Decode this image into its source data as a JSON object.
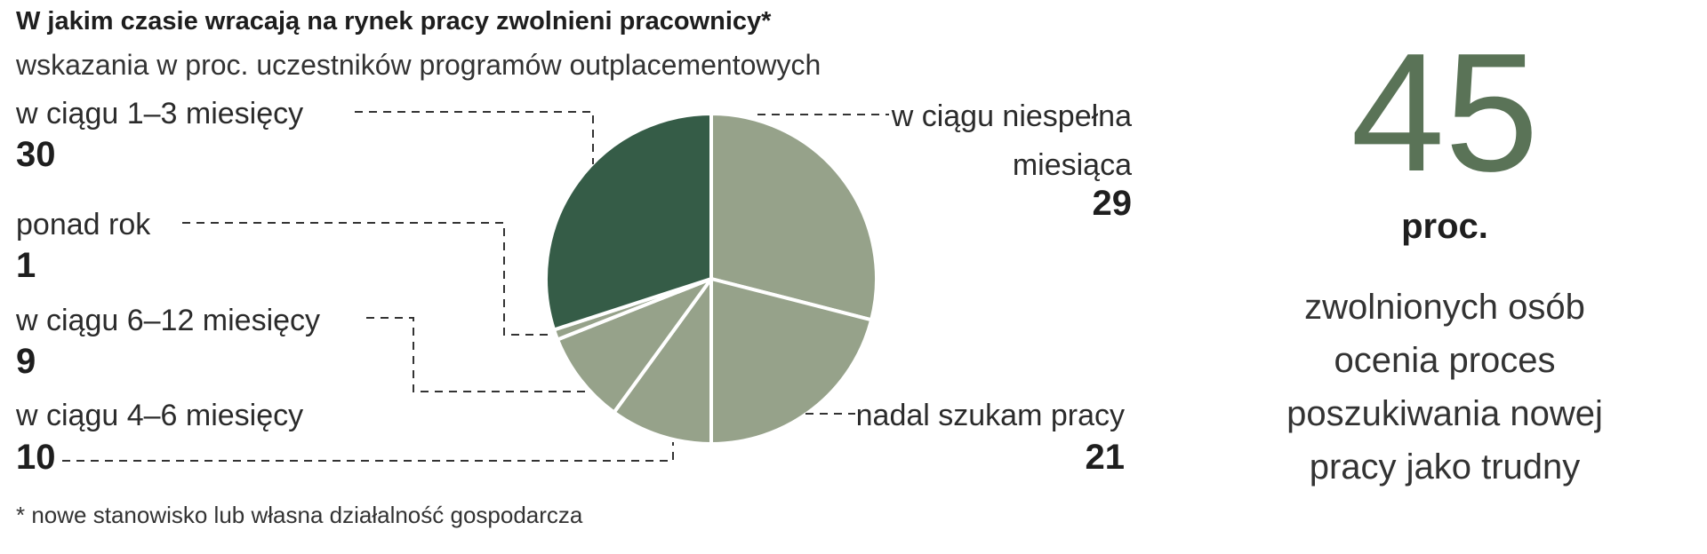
{
  "chart_data": {
    "type": "pie",
    "title": "W jakim czasie wracają na rynek pracy zwolnieni pracownicy*",
    "subtitle": "wskazania w proc. uczestników programów outplacementowych",
    "slices": [
      {
        "label": "w ciągu niespełna miesiąca",
        "label_lines": [
          "w ciągu niespełna",
          "miesiąca"
        ],
        "value": 29,
        "value_text": "29",
        "color": "#96a28a"
      },
      {
        "label": "nadal szukam pracy",
        "label_lines": [
          "nadal szukam pracy"
        ],
        "value": 21,
        "value_text": "21",
        "color": "#96a28a"
      },
      {
        "label": "w ciągu 4–6 miesięcy",
        "label_lines": [
          "w ciągu 4–6 miesięcy"
        ],
        "value": 10,
        "value_text": "10",
        "color": "#96a28a"
      },
      {
        "label": "w ciągu 6–12 miesięcy",
        "label_lines": [
          "w ciągu 6–12 miesięcy"
        ],
        "value": 9,
        "value_text": "9",
        "color": "#96a28a"
      },
      {
        "label": "ponad rok",
        "label_lines": [
          "ponad rok"
        ],
        "value": 1,
        "value_text": "1",
        "color": "#96a28a"
      },
      {
        "label": "w ciągu 1–3 miesięcy",
        "label_lines": [
          "w ciągu 1–3 miesięcy"
        ],
        "value": 30,
        "value_text": "30",
        "color": "#355c47"
      }
    ],
    "footnote": "* nowe stanowisko lub własna działalność gospodarcza"
  },
  "highlight": {
    "number": "45",
    "unit": "proc.",
    "text_lines": [
      "zwolnionych osób",
      "ocenia proces",
      "poszukiwania nowej",
      "pracy jako trudny"
    ]
  }
}
